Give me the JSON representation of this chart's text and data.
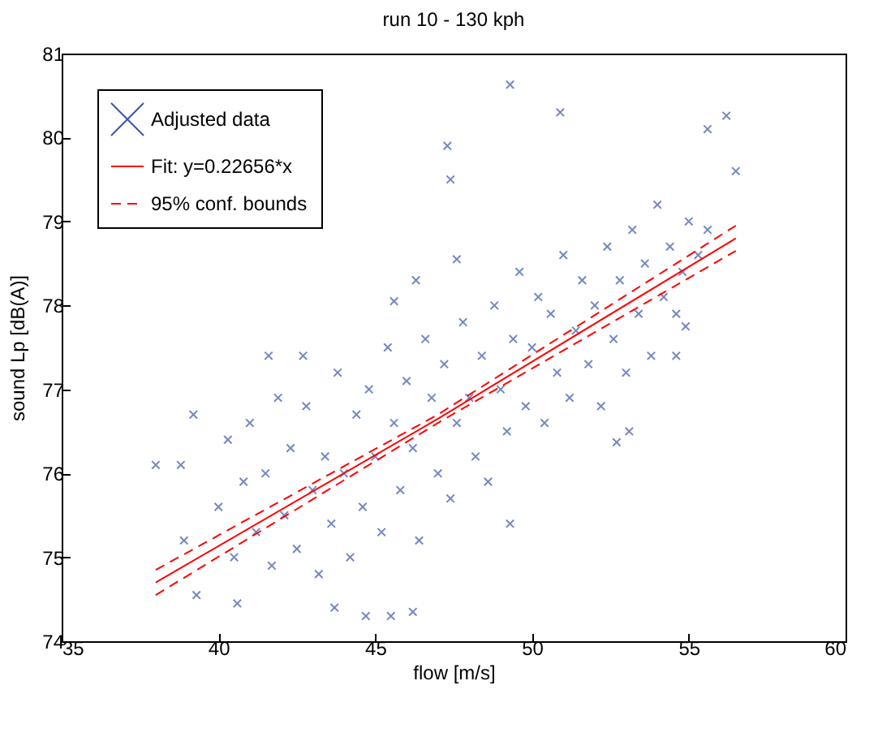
{
  "chart_data": {
    "type": "scatter",
    "title": "run 10 - 130 kph",
    "xlabel": "flow [m/s]",
    "ylabel": "sound Lp [dB(A)]",
    "xlim": [
      35,
      60
    ],
    "xticks": [
      35,
      40,
      45,
      50,
      55,
      60
    ],
    "ylim": [
      74,
      81
    ],
    "yticks": [
      74,
      75,
      76,
      77,
      78,
      79,
      80,
      81
    ],
    "legend": "top left",
    "series": [
      {
        "name": "Adjusted data",
        "type": "scatter",
        "marker": "cross",
        "color": "#3b55a8",
        "x": [
          49.3,
          50.9,
          55.6,
          56.2,
          56.5,
          47.3,
          47.4,
          38.0,
          38.8,
          39.2,
          38.9,
          39.3,
          40.6,
          44.7,
          45.5,
          46.2,
          43.7,
          49.3,
          52.7,
          53.1,
          54.6,
          54.9,
          41.6,
          42.7,
          45.6,
          46.3,
          47.6,
          40.0,
          40.3,
          40.5,
          40.8,
          41.0,
          41.2,
          41.5,
          41.7,
          41.9,
          42.1,
          42.3,
          42.5,
          42.8,
          43.0,
          43.2,
          43.4,
          43.6,
          43.8,
          44.0,
          44.2,
          44.4,
          44.6,
          44.8,
          45.0,
          45.2,
          45.4,
          45.6,
          45.8,
          46.0,
          46.2,
          46.4,
          46.6,
          46.8,
          47.0,
          47.2,
          47.4,
          47.6,
          47.8,
          48.0,
          48.2,
          48.4,
          48.6,
          48.8,
          49.0,
          49.2,
          49.4,
          49.6,
          49.8,
          50.0,
          50.2,
          50.4,
          50.6,
          50.8,
          51.0,
          51.2,
          51.4,
          51.6,
          51.8,
          52.0,
          52.2,
          52.4,
          52.6,
          52.8,
          53.0,
          53.2,
          53.4,
          53.6,
          53.8,
          54.0,
          54.2,
          54.4,
          54.6,
          54.8,
          55.0,
          55.3,
          55.6
        ],
        "values": [
          80.63,
          80.3,
          80.1,
          80.26,
          79.6,
          79.9,
          79.5,
          76.1,
          76.1,
          76.7,
          75.2,
          74.55,
          74.45,
          74.3,
          74.3,
          74.35,
          74.4,
          75.4,
          76.37,
          76.5,
          77.4,
          77.75,
          77.4,
          77.4,
          78.05,
          78.3,
          78.55,
          75.6,
          76.4,
          75.0,
          75.9,
          76.6,
          75.3,
          76.0,
          74.9,
          76.9,
          75.5,
          76.3,
          75.1,
          76.8,
          75.8,
          74.8,
          76.2,
          75.4,
          77.2,
          76.0,
          75.0,
          76.7,
          75.6,
          77.0,
          76.2,
          75.3,
          77.5,
          76.6,
          75.8,
          77.1,
          76.3,
          75.2,
          77.6,
          76.9,
          76.0,
          77.3,
          75.7,
          76.6,
          77.8,
          76.9,
          76.2,
          77.4,
          75.9,
          78.0,
          77.0,
          76.5,
          77.6,
          78.4,
          76.8,
          77.5,
          78.1,
          76.6,
          77.9,
          77.2,
          78.6,
          76.9,
          77.7,
          78.3,
          77.3,
          78.0,
          76.8,
          78.7,
          77.6,
          78.3,
          77.2,
          78.9,
          77.9,
          78.5,
          77.4,
          79.2,
          78.1,
          78.7,
          77.9,
          78.4,
          79.0,
          78.6,
          78.9
        ]
      },
      {
        "name": "Fit: y=0.22656*x",
        "type": "line",
        "color": "#ff0000",
        "line_style": "solid",
        "marker": "none",
        "x": [
          38,
          47,
          56.5
        ],
        "values": [
          74.7,
          76.65,
          78.8
        ]
      },
      {
        "name": "95% conf. bounds",
        "type": "line",
        "color": "#ff0000",
        "line_style": "dashed",
        "marker": "none",
        "x": [
          38,
          47,
          56.5
        ],
        "values": [
          74.55,
          76.6,
          78.65
        ]
      },
      {
        "type": "line",
        "color": "#ff0000",
        "line_style": "dashed",
        "marker": "none",
        "x": [
          38,
          47,
          56.5
        ],
        "values": [
          74.85,
          76.7,
          78.95
        ]
      }
    ]
  }
}
